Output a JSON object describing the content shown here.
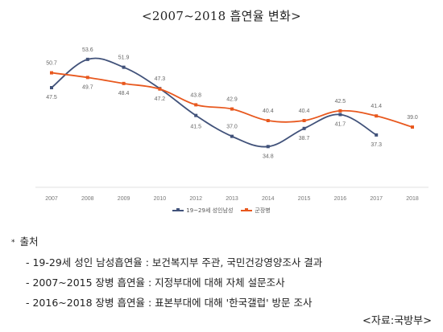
{
  "title": "<2007~2018 흡연율 변화>",
  "chart_data": {
    "type": "line",
    "categories": [
      "2007",
      "2008",
      "2009",
      "2010",
      "2012",
      "2013",
      "2014",
      "2015",
      "2016",
      "2017",
      "2018"
    ],
    "series": [
      {
        "name": "19~29세 성인남성",
        "color": "#41527a",
        "values": [
          47.5,
          53.6,
          51.9,
          47.3,
          41.5,
          37.0,
          34.8,
          38.7,
          41.7,
          37.3,
          null
        ],
        "labels": [
          "47.5",
          "53.6",
          "51.9",
          "47.3",
          "41.5",
          "37.0",
          "34.8",
          "38.7",
          "41.7",
          "37.3",
          ""
        ]
      },
      {
        "name": "군장병",
        "color": "#e8581e",
        "values": [
          50.7,
          49.7,
          48.4,
          47.2,
          43.8,
          42.9,
          40.4,
          40.4,
          42.5,
          41.4,
          39.0
        ],
        "labels": [
          "50.7",
          "49.7",
          "48.4",
          "47.2",
          "43.8",
          "42.9",
          "40.4",
          "40.4",
          "42.5",
          "41.4",
          "39.0"
        ]
      }
    ],
    "ylim": [
      30,
      56
    ],
    "grid": false,
    "legend_position": "bottom"
  },
  "notes": {
    "heading": "출처",
    "items": [
      "- 19-29세 성인 남성흡연율 : 보건복지부 주관, 국민건강영양조사 결과",
      "- 2007~2015 장병 흡연율 : 지정부대에 대해 자체 설문조사",
      "- 2016~2018 장병 흡연율 : 표본부대에 대해 '한국갤럽' 방문 조사"
    ]
  },
  "source": "<자료:국방부>"
}
